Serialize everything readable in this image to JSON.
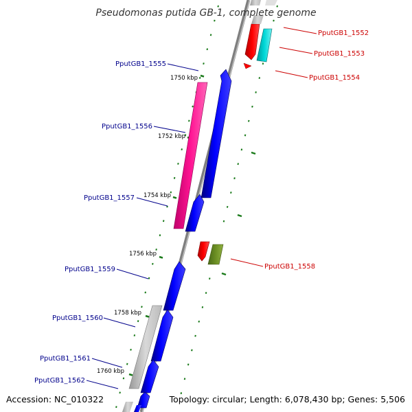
{
  "title": "Pseudomonas putida GB-1, complete genome",
  "footer": {
    "accession": "Accession: NC_010322",
    "topology": "Topology: circular; Length: 6,078,430 bp; Genes: 5,506"
  },
  "colors": {
    "backbone": "#888888",
    "tick": "#1a7a1a",
    "label_left": "#00008b",
    "label_right": "#cc0000"
  },
  "kbp_labels": [
    "1750 kbp",
    "1752 kbp",
    "1754 kbp",
    "1756 kbp",
    "1758 kbp",
    "1760 kbp"
  ],
  "genes_left": [
    {
      "id": "PputGB1_1555",
      "color": "#0000ff"
    },
    {
      "id": "PputGB1_1556",
      "color": "#ff1493"
    },
    {
      "id": "PputGB1_1557",
      "color": "#0000ff"
    },
    {
      "id": "PputGB1_1559",
      "color": "#0000ff"
    },
    {
      "id": "PputGB1_1560",
      "color": "#0000ff"
    },
    {
      "id": "PputGB1_1561",
      "color": "#0000ff"
    },
    {
      "id": "PputGB1_1562",
      "color": "#0000ff"
    }
  ],
  "genes_right": [
    {
      "id": "PputGB1_1552",
      "color": "#ff0000"
    },
    {
      "id": "PputGB1_1553",
      "color": "#00c8c8"
    },
    {
      "id": "PputGB1_1554",
      "color": "#ff0000"
    },
    {
      "id": "PputGB1_1558",
      "color": "#6b8e23"
    }
  ]
}
